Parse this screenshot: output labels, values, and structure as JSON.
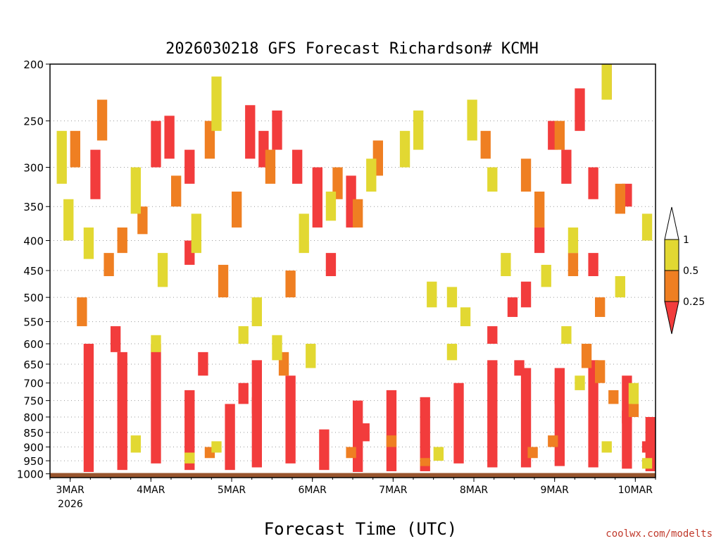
{
  "chart_data": {
    "type": "heatmap",
    "title": "2026030218 GFS Forecast Richardson# KCMH",
    "xlabel": "Forecast Time (UTC)",
    "ylabel": "",
    "credit": "coolwx.com/modelts",
    "x_start_date_label": "2026",
    "x_ticks": [
      {
        "label": "3MAR",
        "hour": 6
      },
      {
        "label": "4MAR",
        "hour": 30
      },
      {
        "label": "5MAR",
        "hour": 54
      },
      {
        "label": "6MAR",
        "hour": 78
      },
      {
        "label": "7MAR",
        "hour": 102
      },
      {
        "label": "8MAR",
        "hour": 126
      },
      {
        "label": "9MAR",
        "hour": 150
      },
      {
        "label": "10MAR",
        "hour": 174
      }
    ],
    "xlim_hours": [
      0,
      180
    ],
    "y_ticks": [
      200,
      250,
      300,
      350,
      400,
      450,
      500,
      550,
      600,
      650,
      700,
      750,
      800,
      850,
      900,
      950,
      1000
    ],
    "ylim_hpa": [
      200,
      1015
    ],
    "surface_hpa": 995,
    "colorbar": {
      "levels": [
        "1",
        "0.5",
        "0.25"
      ],
      "colors": {
        "lt_0.25": "#f23c3c",
        "0.25_0.5": "#ef7f22",
        "0.5_1": "#e2d832",
        "gt_1": "#ffffff"
      },
      "ground_color": "#98552d"
    },
    "series": [
      {
        "name": "Ri < 0.25",
        "color": "#f23c3c",
        "cells": [
          [
            10,
            600,
            995
          ],
          [
            20,
            620,
            985
          ],
          [
            30,
            600,
            960
          ],
          [
            40,
            720,
            985
          ],
          [
            52,
            760,
            985
          ],
          [
            60,
            640,
            975
          ],
          [
            70,
            680,
            960
          ],
          [
            80,
            840,
            985
          ],
          [
            90,
            750,
            995
          ],
          [
            100,
            720,
            990
          ],
          [
            110,
            740,
            990
          ],
          [
            120,
            700,
            960
          ],
          [
            130,
            640,
            975
          ],
          [
            140,
            660,
            975
          ],
          [
            150,
            660,
            970
          ],
          [
            160,
            640,
            975
          ],
          [
            170,
            680,
            980
          ],
          [
            177,
            800,
            990
          ],
          [
            30,
            250,
            300
          ],
          [
            34,
            245,
            290
          ],
          [
            40,
            280,
            320
          ],
          [
            58,
            235,
            290
          ],
          [
            62,
            260,
            300
          ],
          [
            66,
            240,
            280
          ],
          [
            72,
            280,
            320
          ],
          [
            78,
            300,
            380
          ],
          [
            82,
            420,
            460
          ],
          [
            88,
            310,
            380
          ],
          [
            40,
            400,
            440
          ],
          [
            12,
            280,
            340
          ],
          [
            18,
            560,
            620
          ],
          [
            44,
            620,
            680
          ],
          [
            56,
            700,
            760
          ],
          [
            60,
            740,
            790
          ],
          [
            92,
            820,
            880
          ],
          [
            148,
            250,
            280
          ],
          [
            152,
            280,
            320
          ],
          [
            156,
            220,
            260
          ],
          [
            160,
            300,
            340
          ],
          [
            164,
            200,
            230
          ],
          [
            170,
            320,
            350
          ],
          [
            140,
            470,
            520
          ],
          [
            136,
            500,
            540
          ],
          [
            144,
            380,
            420
          ],
          [
            150,
            700,
            760
          ],
          [
            160,
            420,
            460
          ],
          [
            130,
            560,
            600
          ],
          [
            138,
            640,
            680
          ],
          [
            176,
            880,
            920
          ],
          [
            170,
            780,
            820
          ]
        ]
      },
      {
        "name": "0.25 < Ri < 0.5",
        "color": "#ef7f22",
        "cells": [
          [
            6,
            260,
            300
          ],
          [
            14,
            230,
            270
          ],
          [
            20,
            380,
            420
          ],
          [
            26,
            350,
            390
          ],
          [
            36,
            310,
            350
          ],
          [
            46,
            250,
            290
          ],
          [
            54,
            330,
            380
          ],
          [
            64,
            280,
            320
          ],
          [
            70,
            450,
            500
          ],
          [
            84,
            300,
            340
          ],
          [
            90,
            340,
            380
          ],
          [
            96,
            270,
            310
          ],
          [
            8,
            500,
            560
          ],
          [
            16,
            420,
            460
          ],
          [
            50,
            440,
            500
          ],
          [
            68,
            620,
            680
          ],
          [
            100,
            860,
            900
          ],
          [
            110,
            940,
            970
          ],
          [
            46,
            900,
            940
          ],
          [
            88,
            900,
            940
          ],
          [
            140,
            290,
            330
          ],
          [
            144,
            330,
            380
          ],
          [
            154,
            420,
            460
          ],
          [
            158,
            600,
            660
          ],
          [
            162,
            640,
            700
          ],
          [
            166,
            720,
            760
          ],
          [
            172,
            760,
            800
          ],
          [
            148,
            860,
            900
          ],
          [
            142,
            900,
            940
          ],
          [
            168,
            320,
            360
          ],
          [
            150,
            250,
            280
          ],
          [
            128,
            260,
            290
          ],
          [
            162,
            500,
            540
          ]
        ]
      },
      {
        "name": "0.5 < Ri < 1",
        "color": "#e2d832",
        "cells": [
          [
            2,
            260,
            320
          ],
          [
            4,
            340,
            400
          ],
          [
            10,
            380,
            430
          ],
          [
            24,
            300,
            360
          ],
          [
            32,
            420,
            480
          ],
          [
            42,
            360,
            420
          ],
          [
            48,
            210,
            260
          ],
          [
            60,
            500,
            560
          ],
          [
            74,
            360,
            420
          ],
          [
            82,
            330,
            370
          ],
          [
            94,
            290,
            330
          ],
          [
            104,
            260,
            300
          ],
          [
            112,
            470,
            520
          ],
          [
            118,
            480,
            520
          ],
          [
            122,
            520,
            560
          ],
          [
            30,
            580,
            620
          ],
          [
            56,
            560,
            600
          ],
          [
            66,
            580,
            640
          ],
          [
            76,
            600,
            660
          ],
          [
            108,
            240,
            280
          ],
          [
            48,
            880,
            920
          ],
          [
            40,
            920,
            960
          ],
          [
            24,
            860,
            920
          ],
          [
            114,
            900,
            950
          ],
          [
            124,
            230,
            270
          ],
          [
            130,
            300,
            330
          ],
          [
            134,
            420,
            460
          ],
          [
            146,
            440,
            480
          ],
          [
            152,
            560,
            600
          ],
          [
            156,
            680,
            720
          ],
          [
            164,
            880,
            920
          ],
          [
            172,
            700,
            760
          ],
          [
            176,
            940,
            980
          ],
          [
            168,
            460,
            500
          ],
          [
            164,
            200,
            230
          ],
          [
            176,
            360,
            400
          ],
          [
            154,
            380,
            420
          ],
          [
            118,
            600,
            640
          ]
        ]
      }
    ]
  }
}
